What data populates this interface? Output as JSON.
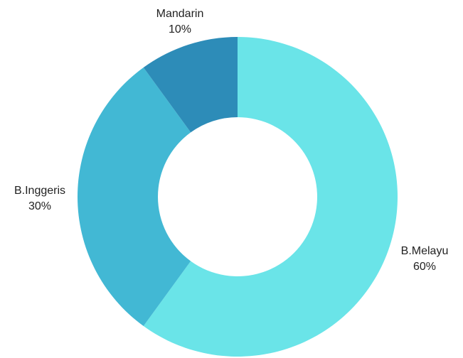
{
  "chart_data": {
    "type": "pie",
    "donut": true,
    "categories": [
      "B.Melayu",
      "B.Inggeris",
      "Mandarin"
    ],
    "values": [
      60,
      30,
      10
    ],
    "value_labels": [
      "60%",
      "30%",
      "10%"
    ],
    "colors": [
      "#6AE4E8",
      "#42B8D4",
      "#2D8CB8"
    ],
    "title": "",
    "legend": "none"
  }
}
